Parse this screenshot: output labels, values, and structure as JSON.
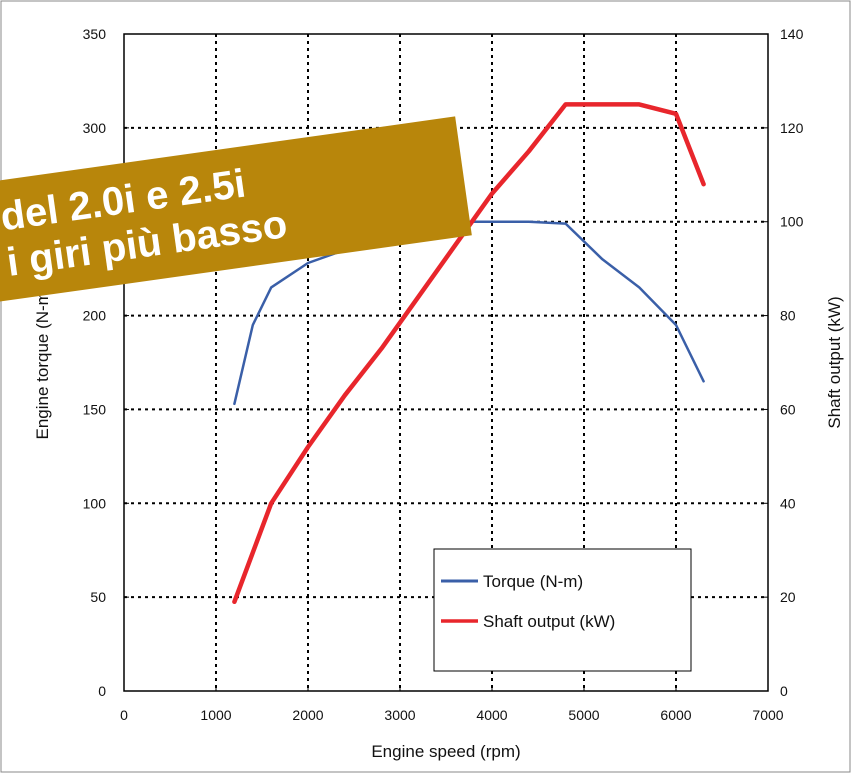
{
  "chart_data": {
    "type": "line",
    "title": "",
    "xlabel": "Engine speed (rpm)",
    "ylabel_left": "Engine torque (N-m)",
    "ylabel_right": "Shaft output (kW)",
    "xlim": [
      0,
      7000
    ],
    "ylim_left": [
      0,
      350
    ],
    "ylim_right": [
      0,
      140
    ],
    "x_ticks": [
      0,
      1000,
      2000,
      3000,
      4000,
      5000,
      6000,
      7000
    ],
    "y_left_ticks": [
      0,
      50,
      100,
      150,
      200,
      250,
      300,
      350
    ],
    "y_right_ticks": [
      0,
      20,
      40,
      60,
      80,
      100,
      120,
      140
    ],
    "grid": true,
    "legend_position": "bottom-right",
    "series": [
      {
        "name": "Torque (N-m)",
        "axis": "left",
        "color": "#3a5fa8",
        "x": [
          1200,
          1400,
          1600,
          2000,
          2400,
          2800,
          3200,
          3600,
          4000,
          4400,
          4800,
          5200,
          5600,
          6000,
          6300
        ],
        "y": [
          153,
          195,
          215,
          228,
          235,
          242,
          247,
          250,
          250,
          250,
          249,
          230,
          215,
          195,
          165
        ]
      },
      {
        "name": "Shaft output (kW)",
        "axis": "right",
        "color": "#e8262c",
        "x": [
          1200,
          1600,
          2000,
          2400,
          2800,
          3200,
          3600,
          4000,
          4400,
          4800,
          5200,
          5600,
          6000,
          6300
        ],
        "y": [
          19,
          40,
          52,
          63,
          73,
          84,
          95,
          106,
          115,
          125,
          125,
          125,
          123,
          108
        ]
      }
    ]
  },
  "overlay": {
    "line1": "del 2.0i e 2.5i",
    "line2": "i giri più basso",
    "color": "#b8860b"
  }
}
